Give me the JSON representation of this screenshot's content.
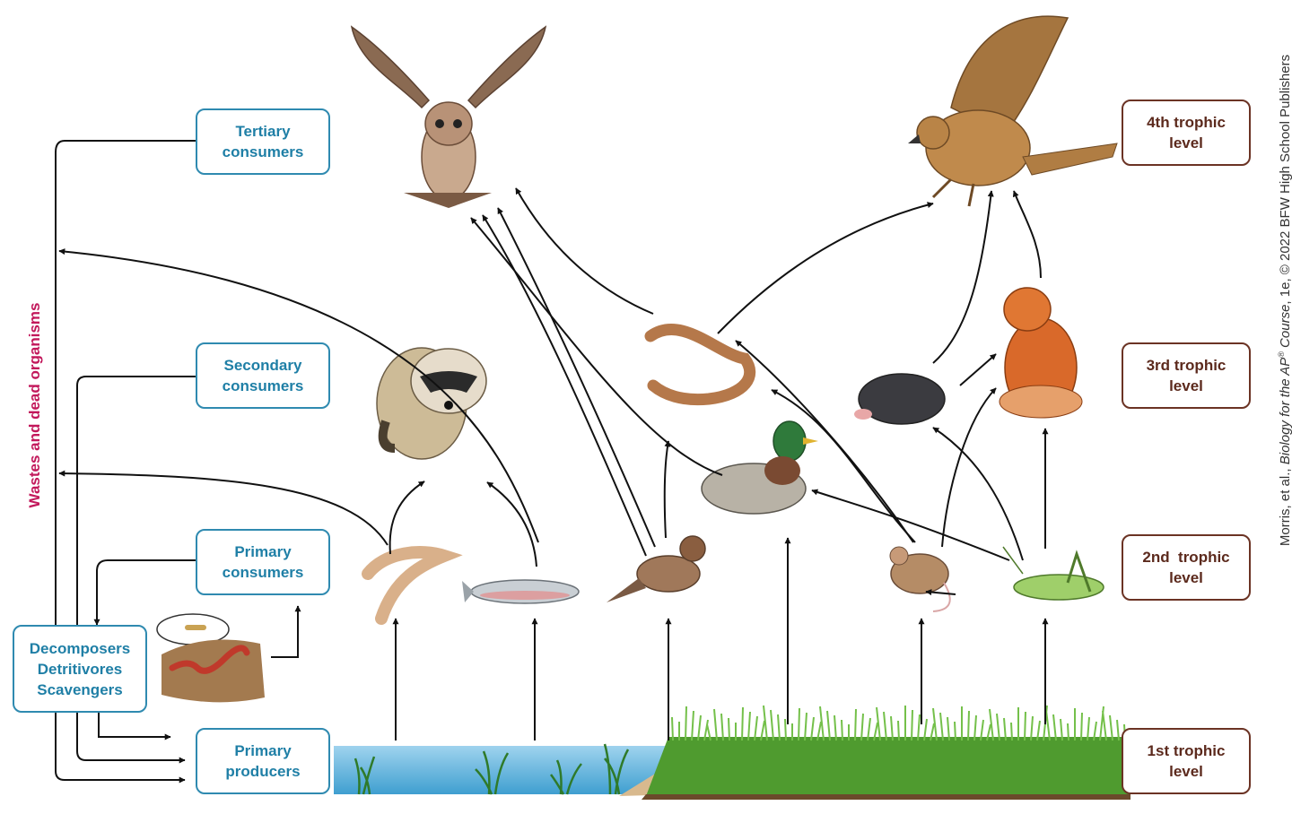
{
  "categories": {
    "tertiary": [
      "Tertiary",
      "consumers"
    ],
    "secondary": [
      "Secondary",
      "consumers"
    ],
    "primary_consumers": [
      "Primary",
      "consumers"
    ],
    "primary_producers": [
      "Primary",
      "producers"
    ],
    "decomposers": [
      "Decomposers",
      "Detritivores",
      "Scavengers"
    ]
  },
  "trophic_levels": {
    "fourth": [
      "4th trophic",
      "level"
    ],
    "third": [
      "3rd trophic",
      "level"
    ],
    "second": [
      "2nd  trophic",
      "level"
    ],
    "first": [
      "1st trophic",
      "level"
    ]
  },
  "side_label": "Wastes and dead organisms",
  "credit": {
    "prefix": "Morris, et al., ",
    "book": "Biology for the AP",
    "reg": "®",
    "book_end": " Course",
    "suffix": ", 1e, © 2022 BFW High School Publishers"
  },
  "organisms": [
    "owl",
    "hawk",
    "raccoon",
    "snake",
    "mole",
    "fox",
    "duck",
    "shrimp",
    "fish",
    "sparrow",
    "mouse",
    "grasshopper",
    "bacteria",
    "earthworm",
    "pond plants",
    "grass"
  ],
  "colors": {
    "consumer_box": "#2f8ab0",
    "level_box": "#6b3324",
    "wastes_label": "#c2185b",
    "arrow": "#111111",
    "water": "#5fb6dc",
    "grass": "#5aa83a"
  }
}
